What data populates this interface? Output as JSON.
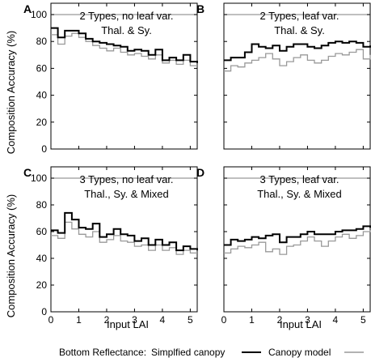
{
  "figure": {
    "ylabel": "Composition Accuracy (%)",
    "xlabel": "Input LAI",
    "legend": {
      "prefix": "Bottom Reflectance:",
      "items": [
        {
          "label": "Simplfied canopy",
          "color": "#000000"
        },
        {
          "label": "Canopy model",
          "color": "#999999"
        }
      ]
    }
  },
  "chart_data": [
    {
      "panel": "A",
      "type": "line",
      "title": "2 Types, no leaf var.",
      "subtitle": "Thal. & Sy.",
      "xlabel": "Input LAI",
      "ylabel": "Composition Accuracy (%)",
      "xlim": [
        0,
        5.25
      ],
      "ylim": [
        0,
        100
      ],
      "xticks": [
        "0",
        "1",
        "2",
        "3",
        "4",
        "5"
      ],
      "yticks": [
        "0",
        "20",
        "40",
        "60",
        "80",
        "100"
      ],
      "reference_line": 100,
      "x": [
        0,
        0.25,
        0.5,
        0.75,
        1,
        1.25,
        1.5,
        1.75,
        2,
        2.25,
        2.5,
        2.75,
        3,
        3.25,
        3.5,
        3.75,
        4,
        4.25,
        4.5,
        4.75,
        5,
        5.25
      ],
      "series": [
        {
          "name": "Simplfied canopy",
          "color": "#000000",
          "values": [
            90,
            83,
            88,
            88,
            86,
            82,
            80,
            79,
            78,
            77,
            76,
            73,
            74,
            73,
            70,
            74,
            66,
            68,
            66,
            70,
            65,
            64
          ]
        },
        {
          "name": "Canopy model",
          "color": "#999999",
          "values": [
            85,
            78,
            84,
            86,
            83,
            80,
            77,
            75,
            73,
            75,
            72,
            70,
            71,
            69,
            67,
            70,
            64,
            66,
            63,
            66,
            62,
            62
          ]
        }
      ]
    },
    {
      "panel": "B",
      "type": "line",
      "title": "2 Types, leaf var.",
      "subtitle": "Thal. & Sy.",
      "xlabel": "Input LAI",
      "ylabel": "Composition Accuracy (%)",
      "xlim": [
        0,
        5.25
      ],
      "ylim": [
        0,
        100
      ],
      "xticks": [
        "0",
        "1",
        "2",
        "3",
        "4",
        "5"
      ],
      "yticks": [
        "0",
        "20",
        "40",
        "60",
        "80",
        "100"
      ],
      "reference_line": 100,
      "x": [
        0,
        0.25,
        0.5,
        0.75,
        1,
        1.25,
        1.5,
        1.75,
        2,
        2.25,
        2.5,
        2.75,
        3,
        3.25,
        3.5,
        3.75,
        4,
        4.25,
        4.5,
        4.75,
        5,
        5.25
      ],
      "series": [
        {
          "name": "Simplfied canopy",
          "color": "#000000",
          "values": [
            66,
            68,
            68,
            72,
            78,
            76,
            75,
            77,
            73,
            76,
            78,
            78,
            76,
            75,
            77,
            79,
            80,
            79,
            80,
            79,
            76,
            77
          ]
        },
        {
          "name": "Canopy model",
          "color": "#999999",
          "values": [
            58,
            62,
            61,
            64,
            66,
            68,
            71,
            67,
            62,
            65,
            68,
            70,
            66,
            64,
            66,
            69,
            71,
            70,
            72,
            74,
            67,
            70
          ]
        }
      ]
    },
    {
      "panel": "C",
      "type": "line",
      "title": "3 Types, no leaf var.",
      "subtitle": "Thal., Sy. & Mixed",
      "xlabel": "Input LAI",
      "ylabel": "Composition Accuracy (%)",
      "xlim": [
        0,
        5.25
      ],
      "ylim": [
        0,
        100
      ],
      "xticks": [
        "0",
        "1",
        "2",
        "3",
        "4",
        "5"
      ],
      "yticks": [
        "0",
        "20",
        "40",
        "60",
        "80",
        "100"
      ],
      "reference_line": 100,
      "x": [
        0,
        0.25,
        0.5,
        0.75,
        1,
        1.25,
        1.5,
        1.75,
        2,
        2.25,
        2.5,
        2.75,
        3,
        3.25,
        3.5,
        3.75,
        4,
        4.25,
        4.5,
        4.75,
        5,
        5.25
      ],
      "series": [
        {
          "name": "Simplfied canopy",
          "color": "#000000",
          "values": [
            61,
            59,
            74,
            69,
            63,
            62,
            66,
            56,
            58,
            62,
            58,
            57,
            53,
            55,
            50,
            54,
            50,
            52,
            46,
            49,
            47,
            46
          ]
        },
        {
          "name": "Canopy model",
          "color": "#999999",
          "values": [
            57,
            55,
            67,
            62,
            58,
            56,
            60,
            52,
            54,
            57,
            53,
            52,
            49,
            50,
            46,
            50,
            46,
            48,
            43,
            46,
            44,
            44
          ]
        }
      ]
    },
    {
      "panel": "D",
      "type": "line",
      "title": "3 Types, leaf var.",
      "subtitle": "Thal., Sy. & Mixed",
      "xlabel": "Input LAI",
      "ylabel": "Composition Accuracy (%)",
      "xlim": [
        0,
        5.25
      ],
      "ylim": [
        0,
        100
      ],
      "xticks": [
        "0",
        "1",
        "2",
        "3",
        "4",
        "5"
      ],
      "yticks": [
        "0",
        "20",
        "40",
        "60",
        "80",
        "100"
      ],
      "reference_line": 100,
      "x": [
        0,
        0.25,
        0.5,
        0.75,
        1,
        1.25,
        1.5,
        1.75,
        2,
        2.25,
        2.5,
        2.75,
        3,
        3.25,
        3.5,
        3.75,
        4,
        4.25,
        4.5,
        4.75,
        5,
        5.25
      ],
      "series": [
        {
          "name": "Simplfied canopy",
          "color": "#000000",
          "values": [
            50,
            54,
            53,
            54,
            56,
            55,
            57,
            58,
            52,
            56,
            56,
            58,
            60,
            58,
            58,
            58,
            60,
            61,
            61,
            62,
            64,
            63
          ]
        },
        {
          "name": "Canopy model",
          "color": "#999999",
          "values": [
            44,
            47,
            49,
            48,
            50,
            52,
            45,
            47,
            43,
            49,
            50,
            53,
            56,
            53,
            49,
            53,
            56,
            58,
            55,
            57,
            60,
            61
          ]
        }
      ]
    }
  ]
}
